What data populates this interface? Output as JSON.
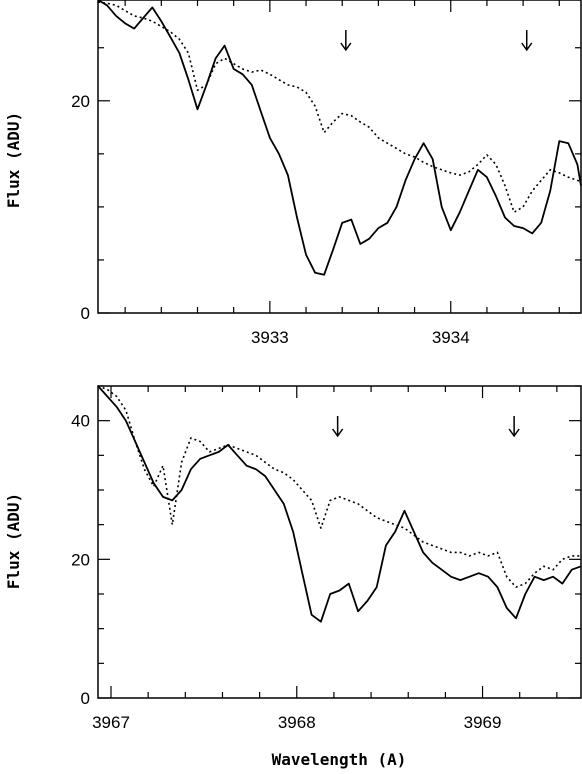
{
  "chart_data": [
    {
      "type": "line",
      "ylabel": "Flux (ADU)",
      "xlabel": "",
      "xlim": [
        3932.05,
        3934.72
      ],
      "ylim": [
        0,
        29.5
      ],
      "xticks_labeled": [
        3933,
        3934
      ],
      "xticks_minor_step": 0.2,
      "yticks_labeled": [
        0,
        20
      ],
      "yticks_minor_step": 5,
      "grid": false,
      "arrows_x": [
        3933.42,
        3934.42
      ],
      "series": [
        {
          "style": "solid",
          "x": [
            3932.05,
            3932.1,
            3932.15,
            3932.2,
            3932.25,
            3932.3,
            3932.35,
            3932.4,
            3932.45,
            3932.5,
            3932.55,
            3932.6,
            3932.65,
            3932.7,
            3932.75,
            3932.8,
            3932.85,
            3932.9,
            3932.95,
            3933.0,
            3933.05,
            3933.1,
            3933.15,
            3933.2,
            3933.25,
            3933.3,
            3933.35,
            3933.4,
            3933.45,
            3933.5,
            3933.55,
            3933.6,
            3933.65,
            3933.7,
            3933.75,
            3933.8,
            3933.85,
            3933.9,
            3933.95,
            3934.0,
            3934.05,
            3934.1,
            3934.15,
            3934.2,
            3934.25,
            3934.3,
            3934.35,
            3934.4,
            3934.45,
            3934.5,
            3934.55,
            3934.6,
            3934.65,
            3934.7,
            3934.72
          ],
          "y": [
            29.5,
            29.0,
            28.0,
            27.3,
            26.8,
            27.8,
            28.8,
            27.5,
            26.0,
            24.5,
            22.0,
            19.2,
            21.5,
            24.0,
            25.2,
            23.0,
            22.5,
            21.5,
            19.0,
            16.5,
            15.0,
            13.0,
            9.0,
            5.5,
            3.8,
            3.6,
            6.0,
            8.5,
            8.8,
            6.5,
            7.0,
            8.0,
            8.5,
            10.0,
            12.5,
            14.5,
            16.0,
            14.5,
            10.0,
            7.8,
            9.5,
            11.5,
            13.5,
            12.8,
            11.0,
            9.0,
            8.2,
            8.0,
            7.5,
            8.5,
            11.5,
            16.2,
            16.0,
            14.0,
            12.0
          ]
        },
        {
          "style": "dotted",
          "x": [
            3932.05,
            3932.1,
            3932.15,
            3932.2,
            3932.25,
            3932.3,
            3932.35,
            3932.4,
            3932.45,
            3932.5,
            3932.55,
            3932.6,
            3932.65,
            3932.7,
            3932.75,
            3932.8,
            3932.85,
            3932.9,
            3932.95,
            3933.0,
            3933.05,
            3933.1,
            3933.15,
            3933.2,
            3933.25,
            3933.3,
            3933.35,
            3933.4,
            3933.45,
            3933.5,
            3933.55,
            3933.6,
            3933.65,
            3933.7,
            3933.75,
            3933.8,
            3933.85,
            3933.9,
            3933.95,
            3934.0,
            3934.05,
            3934.1,
            3934.15,
            3934.2,
            3934.25,
            3934.3,
            3934.35,
            3934.4,
            3934.45,
            3934.5,
            3934.55,
            3934.6,
            3934.65,
            3934.7,
            3934.72
          ],
          "y": [
            29.3,
            29.2,
            29.0,
            28.5,
            28.0,
            27.8,
            27.5,
            27.0,
            26.5,
            25.8,
            24.5,
            21.0,
            21.5,
            23.5,
            24.0,
            23.5,
            23.0,
            22.7,
            22.9,
            22.5,
            22.0,
            21.5,
            21.3,
            20.8,
            19.5,
            17.0,
            18.0,
            18.8,
            18.6,
            18.0,
            17.5,
            16.5,
            16.0,
            15.5,
            15.0,
            14.7,
            14.2,
            13.8,
            13.5,
            13.2,
            13.0,
            13.3,
            14.0,
            14.9,
            14.0,
            12.0,
            9.5,
            10.0,
            11.5,
            12.5,
            13.5,
            13.2,
            12.8,
            12.5,
            12.4
          ]
        }
      ]
    },
    {
      "type": "line",
      "ylabel": "Flux (ADU)",
      "xlabel": "Wavelength (A)",
      "xlim": [
        3966.93,
        3969.53
      ],
      "ylim": [
        0,
        45
      ],
      "xticks_labeled": [
        3967,
        3968,
        3969
      ],
      "xticks_minor_step": 0.2,
      "yticks_labeled": [
        0,
        20,
        40
      ],
      "yticks_minor_step": 5,
      "grid": false,
      "arrows_x": [
        3968.22,
        3969.17
      ],
      "series": [
        {
          "style": "solid",
          "x": [
            3966.93,
            3966.98,
            3967.03,
            3967.08,
            3967.13,
            3967.18,
            3967.23,
            3967.28,
            3967.33,
            3967.38,
            3967.43,
            3967.48,
            3967.53,
            3967.58,
            3967.63,
            3967.68,
            3967.73,
            3967.78,
            3967.83,
            3967.88,
            3967.93,
            3967.98,
            3968.03,
            3968.08,
            3968.13,
            3968.18,
            3968.23,
            3968.28,
            3968.33,
            3968.38,
            3968.43,
            3968.48,
            3968.53,
            3968.58,
            3968.63,
            3968.68,
            3968.73,
            3968.78,
            3968.83,
            3968.88,
            3968.93,
            3968.98,
            3969.03,
            3969.08,
            3969.13,
            3969.18,
            3969.23,
            3969.28,
            3969.33,
            3969.38,
            3969.43,
            3969.48,
            3969.53
          ],
          "y": [
            45.0,
            43.5,
            42.0,
            40.0,
            37.0,
            34.0,
            31.0,
            29.0,
            28.5,
            30.0,
            33.0,
            34.5,
            35.0,
            35.5,
            36.5,
            35.0,
            33.5,
            33.0,
            32.0,
            30.0,
            28.0,
            24.0,
            18.0,
            12.0,
            11.0,
            15.0,
            15.5,
            16.5,
            12.5,
            14.0,
            16.0,
            22.0,
            24.0,
            27.0,
            24.0,
            21.0,
            19.5,
            18.5,
            17.5,
            17.0,
            17.5,
            18.0,
            17.5,
            16.0,
            13.0,
            11.5,
            15.0,
            17.5,
            17.0,
            17.5,
            16.5,
            18.5,
            19.0
          ]
        },
        {
          "style": "dotted",
          "x": [
            3966.93,
            3966.98,
            3967.03,
            3967.08,
            3967.13,
            3967.18,
            3967.23,
            3967.28,
            3967.33,
            3967.38,
            3967.43,
            3967.48,
            3967.53,
            3967.58,
            3967.63,
            3967.68,
            3967.73,
            3967.78,
            3967.83,
            3967.88,
            3967.93,
            3967.98,
            3968.03,
            3968.08,
            3968.13,
            3968.18,
            3968.23,
            3968.28,
            3968.33,
            3968.38,
            3968.43,
            3968.48,
            3968.53,
            3968.58,
            3968.63,
            3968.68,
            3968.73,
            3968.78,
            3968.83,
            3968.88,
            3968.93,
            3968.98,
            3969.03,
            3969.08,
            3969.13,
            3969.18,
            3969.23,
            3969.28,
            3969.33,
            3969.38,
            3969.43,
            3969.48,
            3969.53
          ],
          "y": [
            45.0,
            44.5,
            43.5,
            41.5,
            37.0,
            33.0,
            30.5,
            33.5,
            25.0,
            34.0,
            37.5,
            37.0,
            35.5,
            36.0,
            36.5,
            36.0,
            35.5,
            35.0,
            34.0,
            33.0,
            32.5,
            31.5,
            30.0,
            28.5,
            24.5,
            28.5,
            29.0,
            28.5,
            28.0,
            27.0,
            26.0,
            25.5,
            25.0,
            24.5,
            23.5,
            22.5,
            22.0,
            21.5,
            21.0,
            21.0,
            20.5,
            21.0,
            20.5,
            21.0,
            17.5,
            16.0,
            16.5,
            18.0,
            19.0,
            18.5,
            20.0,
            20.5,
            20.5
          ]
        }
      ]
    }
  ]
}
